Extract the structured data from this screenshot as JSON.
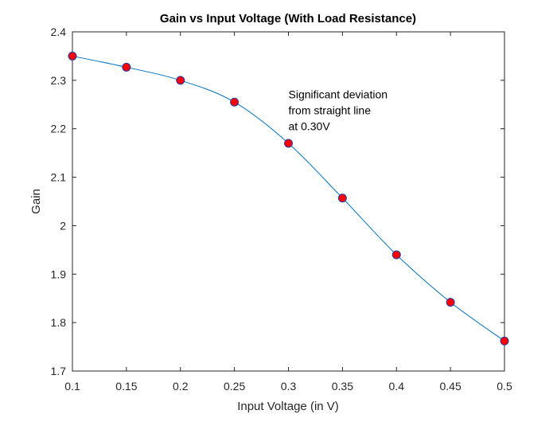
{
  "chart_data": {
    "type": "line",
    "title": "Gain vs Input Voltage (With Load Resistance)",
    "xlabel": "Input Voltage (in V)",
    "ylabel": "Gain",
    "xlim": [
      0.1,
      0.5
    ],
    "ylim": [
      1.7,
      2.4
    ],
    "x_ticks": [
      "0.1",
      "0.15",
      "0.2",
      "0.25",
      "0.3",
      "0.35",
      "0.4",
      "0.45",
      "0.5"
    ],
    "y_ticks": [
      "1.7",
      "1.8",
      "1.9",
      "2",
      "2.1",
      "2.2",
      "2.3",
      "2.4"
    ],
    "grid": false,
    "legend": "none",
    "series": [
      {
        "x": [
          0.1,
          0.15,
          0.2,
          0.25,
          0.3,
          0.35,
          0.4,
          0.45,
          0.5
        ],
        "y": [
          2.35,
          2.327,
          2.3,
          2.255,
          2.17,
          2.057,
          1.94,
          1.842,
          1.762
        ],
        "line_color": "#0072BD",
        "marker": "circle",
        "marker_fill": "#FF0000",
        "marker_edge": "#1F3FA8"
      }
    ],
    "annotations": [
      {
        "lines": [
          "Significant deviation",
          "from straight line",
          "at 0.30V"
        ],
        "x": 0.3,
        "y": 2.2
      }
    ]
  }
}
